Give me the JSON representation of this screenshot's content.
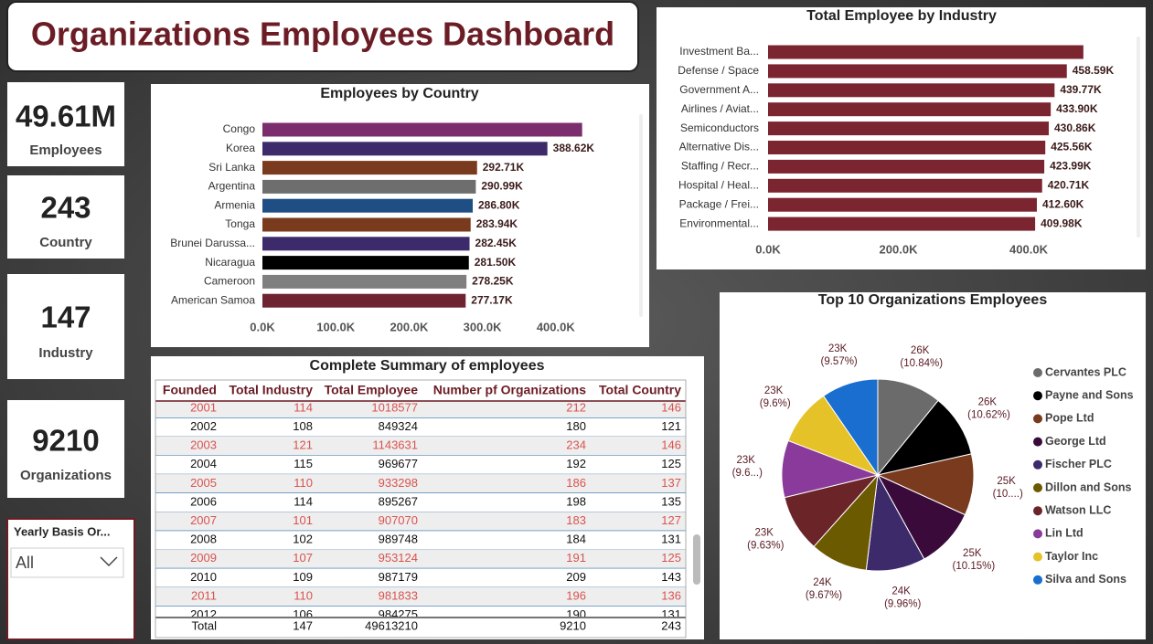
{
  "header": {
    "title": "Organizations Employees Dashboard"
  },
  "cards": [
    {
      "value": "49.61M",
      "label": "Employees"
    },
    {
      "value": "243",
      "label": "Country"
    },
    {
      "value": "147",
      "label": "Industry"
    },
    {
      "value": "9210",
      "label": "Organizations"
    }
  ],
  "slicer": {
    "title": "Yearly Basis Or...",
    "selected": "All"
  },
  "chart_data": [
    {
      "type": "bar",
      "title": "Employees by Country",
      "categories": [
        "Congo",
        "Korea",
        "Sri Lanka",
        "Argentina",
        "Armenia",
        "Tonga",
        "Brunei Darussa...",
        "Nicaragua",
        "Cameroon",
        "American Samoa"
      ],
      "values": [
        436000,
        388620,
        292710,
        290990,
        286800,
        283940,
        282450,
        281500,
        278250,
        277170
      ],
      "value_labels": [
        null,
        "388.62K",
        "292.71K",
        "290.99K",
        "286.80K",
        "283.94K",
        "282.45K",
        "281.50K",
        "278.25K",
        "277.17K"
      ],
      "colors": [
        "#7b2d6e",
        "#3d2a6b",
        "#7a3a1e",
        "#6e6e6e",
        "#1f4e84",
        "#7a3a1e",
        "#3d2a6b",
        "#000000",
        "#7f7f7f",
        "#6e2430"
      ],
      "xlim": [
        0,
        500000
      ],
      "xticks": [
        {
          "value": 0,
          "label": "0.0K"
        },
        {
          "value": 100000,
          "label": "100.0K"
        },
        {
          "value": 200000,
          "label": "200.0K"
        },
        {
          "value": 300000,
          "label": "300.0K"
        },
        {
          "value": 400000,
          "label": "400.0K"
        }
      ]
    },
    {
      "type": "bar",
      "title": "Total Employee by Industry",
      "categories": [
        "Investment Ba...",
        "Defense / Space",
        "Government A...",
        "Airlines / Aviat...",
        "Semiconductors",
        "Alternative Dis...",
        "Staffing / Recr...",
        "Hospital / Heal...",
        "Package / Frei...",
        "Environmental..."
      ],
      "values": [
        484000,
        458590,
        439770,
        433900,
        430860,
        425560,
        423990,
        420710,
        412600,
        409980
      ],
      "value_labels": [
        null,
        "458.59K",
        "439.77K",
        "433.90K",
        "430.86K",
        "425.56K",
        "423.99K",
        "420.71K",
        "412.60K",
        "409.98K"
      ],
      "color": "#7b2530",
      "xlim": [
        0,
        560000
      ],
      "xticks": [
        {
          "value": 0,
          "label": "0.0K"
        },
        {
          "value": 200000,
          "label": "200.0K"
        },
        {
          "value": 400000,
          "label": "400.0K"
        }
      ]
    },
    {
      "type": "pie",
      "title": "Top 10 Organizations Employees",
      "categories": [
        "Cervantes PLC",
        "Payne and Sons",
        "Pope Ltd",
        "George Ltd",
        "Fischer PLC",
        "Dillon and Sons",
        "Watson LLC",
        "Lin Ltd",
        "Taylor Inc",
        "Silva and Sons"
      ],
      "values": [
        26363,
        25828,
        25196,
        24685,
        24223,
        23517,
        23420,
        23347,
        23347,
        23274
      ],
      "value_labels": [
        "26K (10.84%)",
        "26K (10.62%)",
        "25K (10....)",
        "25K (10.15%)",
        "24K (9.96%)",
        "24K (9.67%)",
        "23K (9.63%)",
        "23K (9.6...)",
        "23K (9.6%)",
        "23K (9.57%)"
      ],
      "colors": [
        "#6b6b6b",
        "#000000",
        "#7a3a1e",
        "#3a0a3a",
        "#3d2a6b",
        "#6b5a00",
        "#6b2428",
        "#8a3a9a",
        "#e6c229",
        "#1a6ecf"
      ],
      "legend": "right"
    }
  ],
  "table": {
    "title": "Complete Summary of employees",
    "columns": [
      "Founded",
      "Total Industry",
      "Total Employee",
      "Number pf Organizations",
      "Total Country"
    ],
    "rows": [
      [
        "2001",
        "114",
        "1018577",
        "212",
        "146"
      ],
      [
        "2002",
        "108",
        "849324",
        "180",
        "121"
      ],
      [
        "2003",
        "121",
        "1143631",
        "234",
        "146"
      ],
      [
        "2004",
        "115",
        "969677",
        "192",
        "125"
      ],
      [
        "2005",
        "110",
        "933298",
        "186",
        "137"
      ],
      [
        "2006",
        "114",
        "895267",
        "198",
        "135"
      ],
      [
        "2007",
        "101",
        "907070",
        "183",
        "127"
      ],
      [
        "2008",
        "102",
        "989748",
        "184",
        "131"
      ],
      [
        "2009",
        "107",
        "953124",
        "191",
        "125"
      ],
      [
        "2010",
        "109",
        "987179",
        "209",
        "143"
      ],
      [
        "2011",
        "110",
        "981833",
        "196",
        "136"
      ],
      [
        "2012",
        "106",
        "984275",
        "190",
        "131"
      ]
    ],
    "total": [
      "Total",
      "147",
      "49613210",
      "9210",
      "243"
    ]
  }
}
